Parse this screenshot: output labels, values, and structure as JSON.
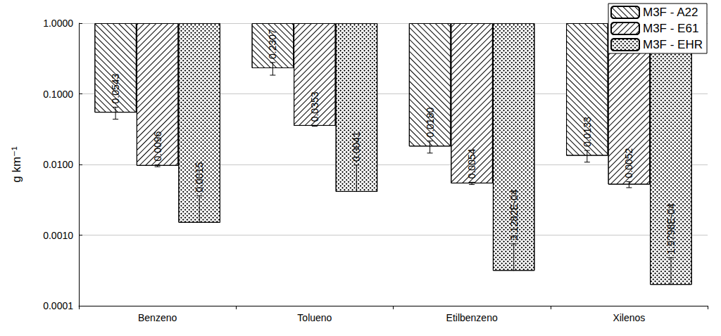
{
  "chart_data": {
    "type": "bar",
    "y_label": "g km⁻¹",
    "categories": [
      "Benzeno",
      "Tolueno",
      "Etilbenzeno",
      "Xilenos"
    ],
    "series": [
      {
        "name": "M3F - A22",
        "color": "#ffffff",
        "values": [
          0.0543,
          0.2307,
          0.018,
          0.0133
        ],
        "value_labels": [
          "0.0543",
          "0.2307",
          "0.0180",
          "0.0133"
        ],
        "errors": [
          0.0105,
          0.047,
          0.0035,
          0.0025
        ]
      },
      {
        "name": "M3F - E61",
        "color": "#ffffff",
        "values": [
          0.0096,
          0.0353,
          0.0054,
          0.0052
        ],
        "value_labels": [
          "0.0096",
          "0.0353",
          "0.0054",
          "0.0052"
        ],
        "errors": [
          0.0003,
          0.0005,
          0.0002,
          0.0005
        ]
      },
      {
        "name": "M3F - EHR",
        "color": "#ffffff",
        "values": [
          0.0015,
          0.0041,
          0.00031282,
          0.00019798
        ],
        "value_labels": [
          "0.0015",
          "0.0041",
          "3.1282E-04",
          "1.9798E-04"
        ],
        "errors": [
          0.0021,
          0.0057,
          0.00044,
          0.00028
        ]
      }
    ],
    "ylim": [
      0.0001,
      1
    ],
    "yticks": [
      {
        "value": 0.0001,
        "label": "0.0001"
      },
      {
        "value": 0.001,
        "label": "0.0010"
      },
      {
        "value": 0.01,
        "label": "0.0100"
      },
      {
        "value": 0.1,
        "label": "0.1000"
      },
      {
        "value": 1,
        "label": "1.0000"
      }
    ],
    "log": "y",
    "grid": true,
    "legend": "top-right",
    "data_labels": true
  }
}
